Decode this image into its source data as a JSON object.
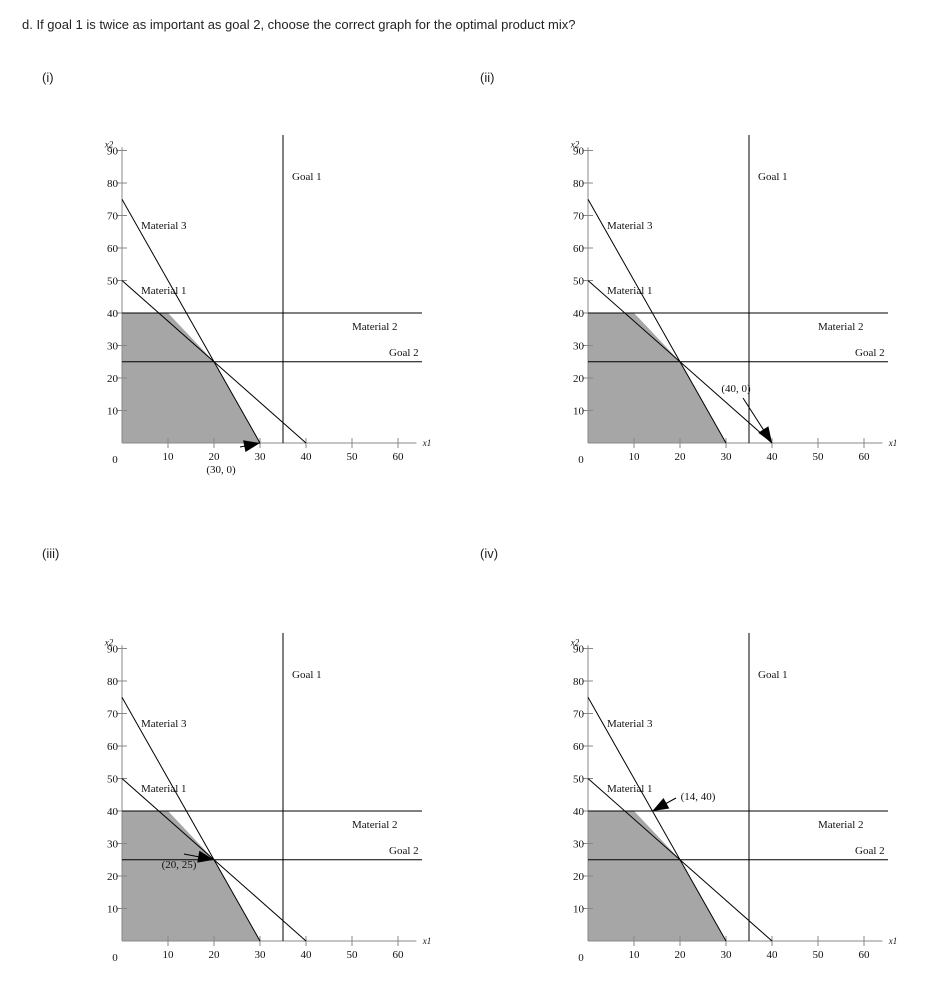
{
  "question": "d. If goal 1 is twice as important as goal 2, choose the correct graph for the optimal product mix?",
  "colors": {
    "feasible": "#a6a6a6",
    "line": "#000000"
  },
  "chart_data": [
    {
      "type": "line",
      "option": "(i)",
      "xticks": [
        10,
        20,
        30,
        40,
        50,
        60
      ],
      "yticks": [
        10,
        20,
        30,
        40,
        50,
        60,
        70,
        80,
        90
      ],
      "origin_label": "0",
      "xlabel": "x1",
      "ylabel": "x2",
      "xlim": [
        0,
        65
      ],
      "ylim": [
        0,
        95
      ],
      "feasible_region": [
        [
          0,
          0
        ],
        [
          0,
          40
        ],
        [
          10,
          40
        ],
        [
          20,
          25
        ],
        [
          30,
          0
        ]
      ],
      "lines": [
        {
          "name": "Material 3",
          "x": [
            0,
            30
          ],
          "y": [
            75,
            0
          ]
        },
        {
          "name": "Material 1",
          "x": [
            0,
            40
          ],
          "y": [
            50,
            0
          ]
        },
        {
          "name": "Material 2",
          "x": [
            0,
            65
          ],
          "y": [
            40,
            40
          ]
        },
        {
          "name": "Goal 2",
          "x": [
            0,
            65
          ],
          "y": [
            25,
            25
          ]
        },
        {
          "name": "Goal 1",
          "x": [
            35,
            35
          ],
          "y": [
            0,
            95
          ]
        }
      ],
      "line_labels": {
        "material3": "Material 3",
        "material1": "Material 1",
        "material2": "Material 2",
        "goal2": "Goal 2",
        "goal1": "Goal 1"
      },
      "annotation": {
        "text": "(30, 0)",
        "point": [
          30,
          0
        ]
      }
    },
    {
      "type": "line",
      "option": "(ii)",
      "xticks": [
        10,
        20,
        30,
        40,
        50,
        60
      ],
      "yticks": [
        10,
        20,
        30,
        40,
        50,
        60,
        70,
        80,
        90
      ],
      "origin_label": "0",
      "xlabel": "x1",
      "ylabel": "x2",
      "xlim": [
        0,
        65
      ],
      "ylim": [
        0,
        95
      ],
      "feasible_region": [
        [
          0,
          0
        ],
        [
          0,
          40
        ],
        [
          10,
          40
        ],
        [
          20,
          25
        ],
        [
          30,
          0
        ]
      ],
      "lines": [
        {
          "name": "Material 3",
          "x": [
            0,
            30
          ],
          "y": [
            75,
            0
          ]
        },
        {
          "name": "Material 1",
          "x": [
            0,
            40
          ],
          "y": [
            50,
            0
          ]
        },
        {
          "name": "Material 2",
          "x": [
            0,
            65
          ],
          "y": [
            40,
            40
          ]
        },
        {
          "name": "Goal 2",
          "x": [
            0,
            65
          ],
          "y": [
            25,
            25
          ]
        },
        {
          "name": "Goal 1",
          "x": [
            35,
            35
          ],
          "y": [
            0,
            95
          ]
        }
      ],
      "line_labels": {
        "material3": "Material 3",
        "material1": "Material 1",
        "material2": "Material 2",
        "goal2": "Goal 2",
        "goal1": "Goal 1"
      },
      "annotation": {
        "text": "(40, 0)",
        "point": [
          40,
          0
        ]
      }
    },
    {
      "type": "line",
      "option": "(iii)",
      "xticks": [
        10,
        20,
        30,
        40,
        50,
        60
      ],
      "yticks": [
        10,
        20,
        30,
        40,
        50,
        60,
        70,
        80,
        90
      ],
      "origin_label": "0",
      "xlabel": "x1",
      "ylabel": "x2",
      "xlim": [
        0,
        65
      ],
      "ylim": [
        0,
        95
      ],
      "feasible_region": [
        [
          0,
          0
        ],
        [
          0,
          40
        ],
        [
          10,
          40
        ],
        [
          20,
          25
        ],
        [
          30,
          0
        ]
      ],
      "lines": [
        {
          "name": "Material 3",
          "x": [
            0,
            30
          ],
          "y": [
            75,
            0
          ]
        },
        {
          "name": "Material 1",
          "x": [
            0,
            40
          ],
          "y": [
            50,
            0
          ]
        },
        {
          "name": "Material 2",
          "x": [
            0,
            65
          ],
          "y": [
            40,
            40
          ]
        },
        {
          "name": "Goal 2",
          "x": [
            0,
            65
          ],
          "y": [
            25,
            25
          ]
        },
        {
          "name": "Goal 1",
          "x": [
            35,
            35
          ],
          "y": [
            0,
            95
          ]
        }
      ],
      "line_labels": {
        "material3": "Material 3",
        "material1": "Material 1",
        "material2": "Material 2",
        "goal2": "Goal 2",
        "goal1": "Goal 1"
      },
      "annotation": {
        "text": "(20, 25)",
        "point": [
          20,
          25
        ]
      }
    },
    {
      "type": "line",
      "option": "(iv)",
      "xticks": [
        10,
        20,
        30,
        40,
        50,
        60
      ],
      "yticks": [
        10,
        20,
        30,
        40,
        50,
        60,
        70,
        80,
        90
      ],
      "origin_label": "0",
      "xlabel": "x1",
      "ylabel": "x2",
      "xlim": [
        0,
        65
      ],
      "ylim": [
        0,
        95
      ],
      "feasible_region": [
        [
          0,
          0
        ],
        [
          0,
          40
        ],
        [
          10,
          40
        ],
        [
          20,
          25
        ],
        [
          30,
          0
        ]
      ],
      "lines": [
        {
          "name": "Material 3",
          "x": [
            0,
            30
          ],
          "y": [
            75,
            0
          ]
        },
        {
          "name": "Material 1",
          "x": [
            0,
            40
          ],
          "y": [
            50,
            0
          ]
        },
        {
          "name": "Material 2",
          "x": [
            0,
            65
          ],
          "y": [
            40,
            40
          ]
        },
        {
          "name": "Goal 2",
          "x": [
            0,
            65
          ],
          "y": [
            25,
            25
          ]
        },
        {
          "name": "Goal 1",
          "x": [
            35,
            35
          ],
          "y": [
            0,
            95
          ]
        }
      ],
      "line_labels": {
        "material3": "Material 3",
        "material1": "Material 1",
        "material2": "Material 2",
        "goal2": "Goal 2",
        "goal1": "Goal 1"
      },
      "annotation": {
        "text": "(14, 40)",
        "point": [
          14,
          40
        ]
      }
    }
  ]
}
